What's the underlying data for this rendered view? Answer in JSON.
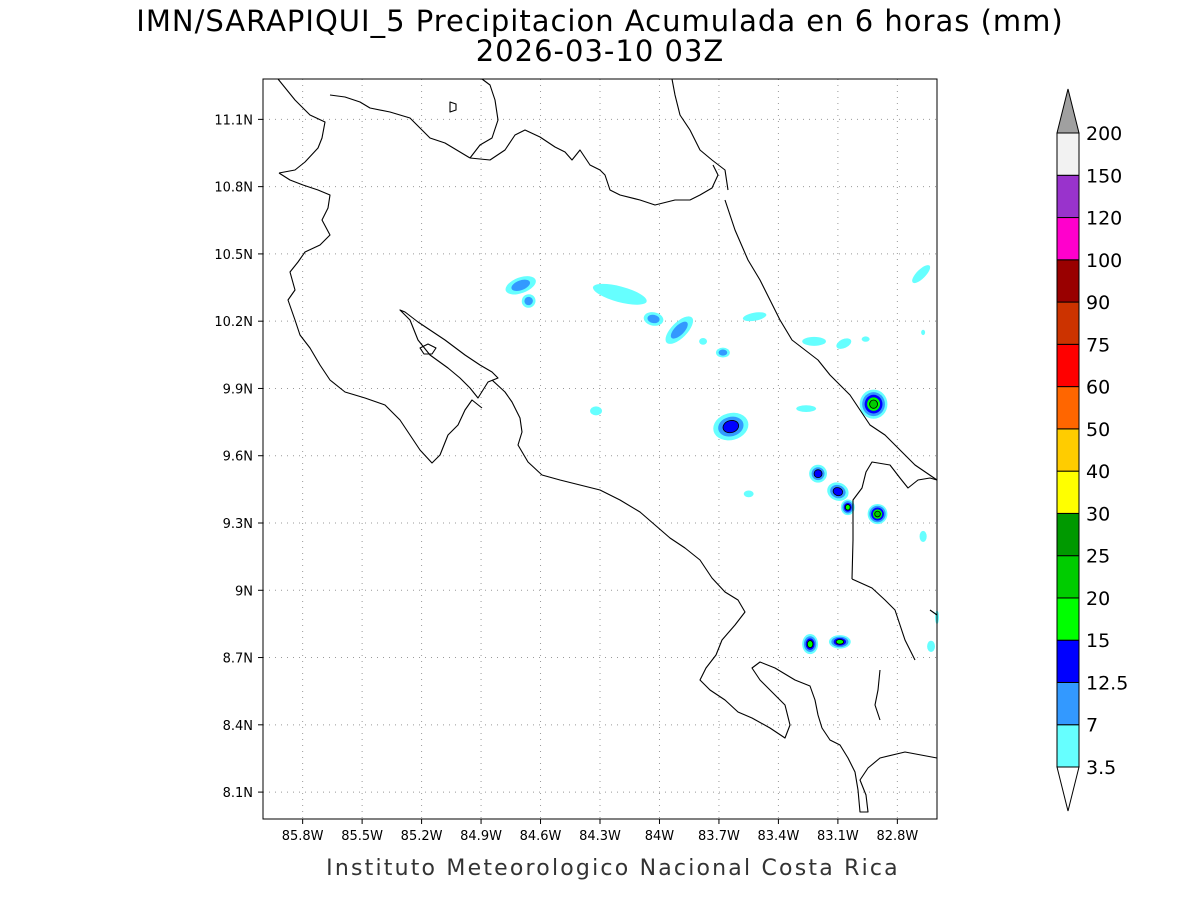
{
  "title": {
    "line1": "IMN/SARAPIQUI_5 Precipitacion Acumulada en 6 horas (mm)",
    "line2": "2026-03-10 03Z"
  },
  "credit": "Instituto Meteorologico Nacional Costa Rica",
  "map": {
    "lon_range": [
      -86.0,
      -82.6
    ],
    "lat_range": [
      7.98,
      11.28
    ],
    "lon_ticks": [
      {
        "value": -85.8,
        "label": "85.8W"
      },
      {
        "value": -85.5,
        "label": "85.5W"
      },
      {
        "value": -85.2,
        "label": "85.2W"
      },
      {
        "value": -84.9,
        "label": "84.9W"
      },
      {
        "value": -84.6,
        "label": "84.6W"
      },
      {
        "value": -84.3,
        "label": "84.3W"
      },
      {
        "value": -84.0,
        "label": "84W"
      },
      {
        "value": -83.7,
        "label": "83.7W"
      },
      {
        "value": -83.4,
        "label": "83.4W"
      },
      {
        "value": -83.1,
        "label": "83.1W"
      },
      {
        "value": -82.8,
        "label": "82.8W"
      }
    ],
    "lat_ticks": [
      {
        "value": 11.1,
        "label": "11.1N"
      },
      {
        "value": 10.8,
        "label": "10.8N"
      },
      {
        "value": 10.5,
        "label": "10.5N"
      },
      {
        "value": 10.2,
        "label": "10.2N"
      },
      {
        "value": 9.9,
        "label": "9.9N"
      },
      {
        "value": 9.6,
        "label": "9.6N"
      },
      {
        "value": 9.3,
        "label": "9.3N"
      },
      {
        "value": 9.0,
        "label": "9N"
      },
      {
        "value": 8.7,
        "label": "8.7N"
      },
      {
        "value": 8.4,
        "label": "8.4N"
      },
      {
        "value": 8.1,
        "label": "8.1N"
      }
    ],
    "grid": true,
    "rain_cells": [
      {
        "lon": -84.7,
        "lat": 10.36,
        "rx": 0.08,
        "ry": 0.035,
        "level": 2,
        "rot": -20
      },
      {
        "lon": -84.66,
        "lat": 10.29,
        "rx": 0.035,
        "ry": 0.03,
        "level": 2,
        "rot": -30
      },
      {
        "lon": -84.2,
        "lat": 10.32,
        "rx": 0.14,
        "ry": 0.035,
        "level": 1,
        "rot": 15
      },
      {
        "lon": -84.03,
        "lat": 10.21,
        "rx": 0.05,
        "ry": 0.03,
        "level": 2,
        "rot": 10
      },
      {
        "lon": -83.9,
        "lat": 10.16,
        "rx": 0.09,
        "ry": 0.035,
        "level": 2,
        "rot": -45
      },
      {
        "lon": -83.68,
        "lat": 10.06,
        "rx": 0.035,
        "ry": 0.022,
        "level": 2,
        "rot": 0
      },
      {
        "lon": -83.78,
        "lat": 10.11,
        "rx": 0.02,
        "ry": 0.015,
        "level": 1,
        "rot": 0
      },
      {
        "lon": -83.52,
        "lat": 10.22,
        "rx": 0.06,
        "ry": 0.018,
        "level": 1,
        "rot": -10
      },
      {
        "lon": -83.22,
        "lat": 10.11,
        "rx": 0.06,
        "ry": 0.02,
        "level": 1,
        "rot": 0
      },
      {
        "lon": -83.07,
        "lat": 10.1,
        "rx": 0.04,
        "ry": 0.02,
        "level": 1,
        "rot": -25
      },
      {
        "lon": -82.96,
        "lat": 10.12,
        "rx": 0.02,
        "ry": 0.012,
        "level": 1,
        "rot": 0
      },
      {
        "lon": -82.68,
        "lat": 10.41,
        "rx": 0.06,
        "ry": 0.02,
        "level": 1,
        "rot": -45
      },
      {
        "lon": -82.67,
        "lat": 10.15,
        "rx": 0.01,
        "ry": 0.012,
        "level": 1,
        "rot": 0
      },
      {
        "lon": -82.92,
        "lat": 9.83,
        "rx": 0.07,
        "ry": 0.065,
        "level": 5,
        "rot": 0
      },
      {
        "lon": -83.64,
        "lat": 9.73,
        "rx": 0.09,
        "ry": 0.06,
        "level": 3,
        "rot": -15
      },
      {
        "lon": -84.32,
        "lat": 9.8,
        "rx": 0.03,
        "ry": 0.02,
        "level": 1,
        "rot": 0
      },
      {
        "lon": -83.26,
        "lat": 9.81,
        "rx": 0.05,
        "ry": 0.015,
        "level": 1,
        "rot": 0
      },
      {
        "lon": -83.2,
        "lat": 9.52,
        "rx": 0.045,
        "ry": 0.04,
        "level": 3,
        "rot": 0
      },
      {
        "lon": -83.1,
        "lat": 9.44,
        "rx": 0.055,
        "ry": 0.04,
        "level": 3,
        "rot": 20
      },
      {
        "lon": -83.05,
        "lat": 9.37,
        "rx": 0.035,
        "ry": 0.035,
        "level": 4,
        "rot": 0
      },
      {
        "lon": -82.9,
        "lat": 9.34,
        "rx": 0.05,
        "ry": 0.045,
        "level": 5,
        "rot": 0
      },
      {
        "lon": -83.55,
        "lat": 9.43,
        "rx": 0.025,
        "ry": 0.015,
        "level": 1,
        "rot": 0
      },
      {
        "lon": -82.67,
        "lat": 9.24,
        "rx": 0.018,
        "ry": 0.025,
        "level": 1,
        "rot": 0
      },
      {
        "lon": -83.24,
        "lat": 8.76,
        "rx": 0.04,
        "ry": 0.045,
        "level": 4,
        "rot": 0
      },
      {
        "lon": -83.09,
        "lat": 8.77,
        "rx": 0.055,
        "ry": 0.03,
        "level": 4,
        "rot": 0
      },
      {
        "lon": -82.63,
        "lat": 8.75,
        "rx": 0.02,
        "ry": 0.025,
        "level": 1,
        "rot": 0
      },
      {
        "lon": -82.6,
        "lat": 8.88,
        "rx": 0.01,
        "ry": 0.03,
        "level": 1,
        "rot": 0
      }
    ]
  },
  "colorbar": {
    "under_color": "#ffffff",
    "over_color": "#a0a0a0",
    "bins": [
      {
        "color": "#66ffff"
      },
      {
        "color": "#3399ff"
      },
      {
        "color": "#0000ff"
      },
      {
        "color": "#00ff00"
      },
      {
        "color": "#00cc00"
      },
      {
        "color": "#009900"
      },
      {
        "color": "#ffff00"
      },
      {
        "color": "#ffcc00"
      },
      {
        "color": "#ff6600"
      },
      {
        "color": "#ff0000"
      },
      {
        "color": "#cc3300"
      },
      {
        "color": "#990000"
      },
      {
        "color": "#ff00cc"
      },
      {
        "color": "#9933cc"
      },
      {
        "color": "#f2f2f2"
      }
    ],
    "labels": [
      "3.5",
      "7",
      "12.5",
      "15",
      "20",
      "25",
      "30",
      "40",
      "50",
      "60",
      "75",
      "90",
      "100",
      "120",
      "150",
      "200"
    ]
  }
}
